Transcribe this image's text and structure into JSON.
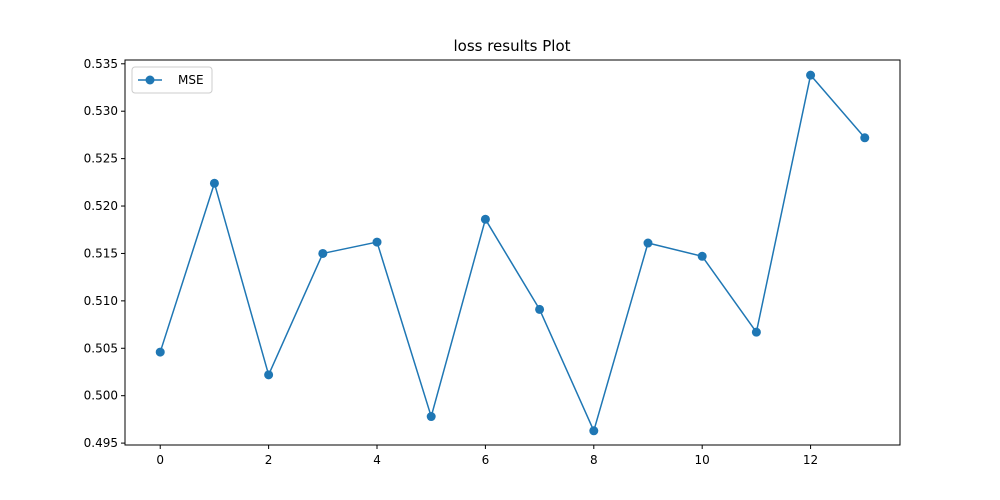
{
  "chart_data": {
    "type": "line",
    "title": "loss results Plot",
    "xlabel": "",
    "ylabel": "",
    "xlim": [
      -0.65,
      13.65
    ],
    "ylim": [
      0.4948,
      0.5354
    ],
    "x_ticks": [
      0,
      2,
      4,
      6,
      8,
      10,
      12
    ],
    "y_ticks": [
      0.495,
      0.5,
      0.505,
      0.51,
      0.515,
      0.52,
      0.525,
      0.53,
      0.535
    ],
    "x_tick_labels": [
      "0",
      "2",
      "4",
      "6",
      "8",
      "10",
      "12"
    ],
    "y_tick_labels": [
      "0.495",
      "0.500",
      "0.505",
      "0.510",
      "0.515",
      "0.520",
      "0.525",
      "0.530",
      "0.535"
    ],
    "grid": false,
    "legend_position": "upper-left",
    "series": [
      {
        "name": "MSE",
        "color": "#1f77b4",
        "marker": "circle",
        "x": [
          0,
          1,
          2,
          3,
          4,
          5,
          6,
          7,
          8,
          9,
          10,
          11,
          12,
          13
        ],
        "values": [
          0.5046,
          0.5224,
          0.5022,
          0.515,
          0.5162,
          0.4978,
          0.5186,
          0.5091,
          0.4963,
          0.5161,
          0.5147,
          0.5067,
          0.5338,
          0.5272
        ]
      }
    ]
  }
}
